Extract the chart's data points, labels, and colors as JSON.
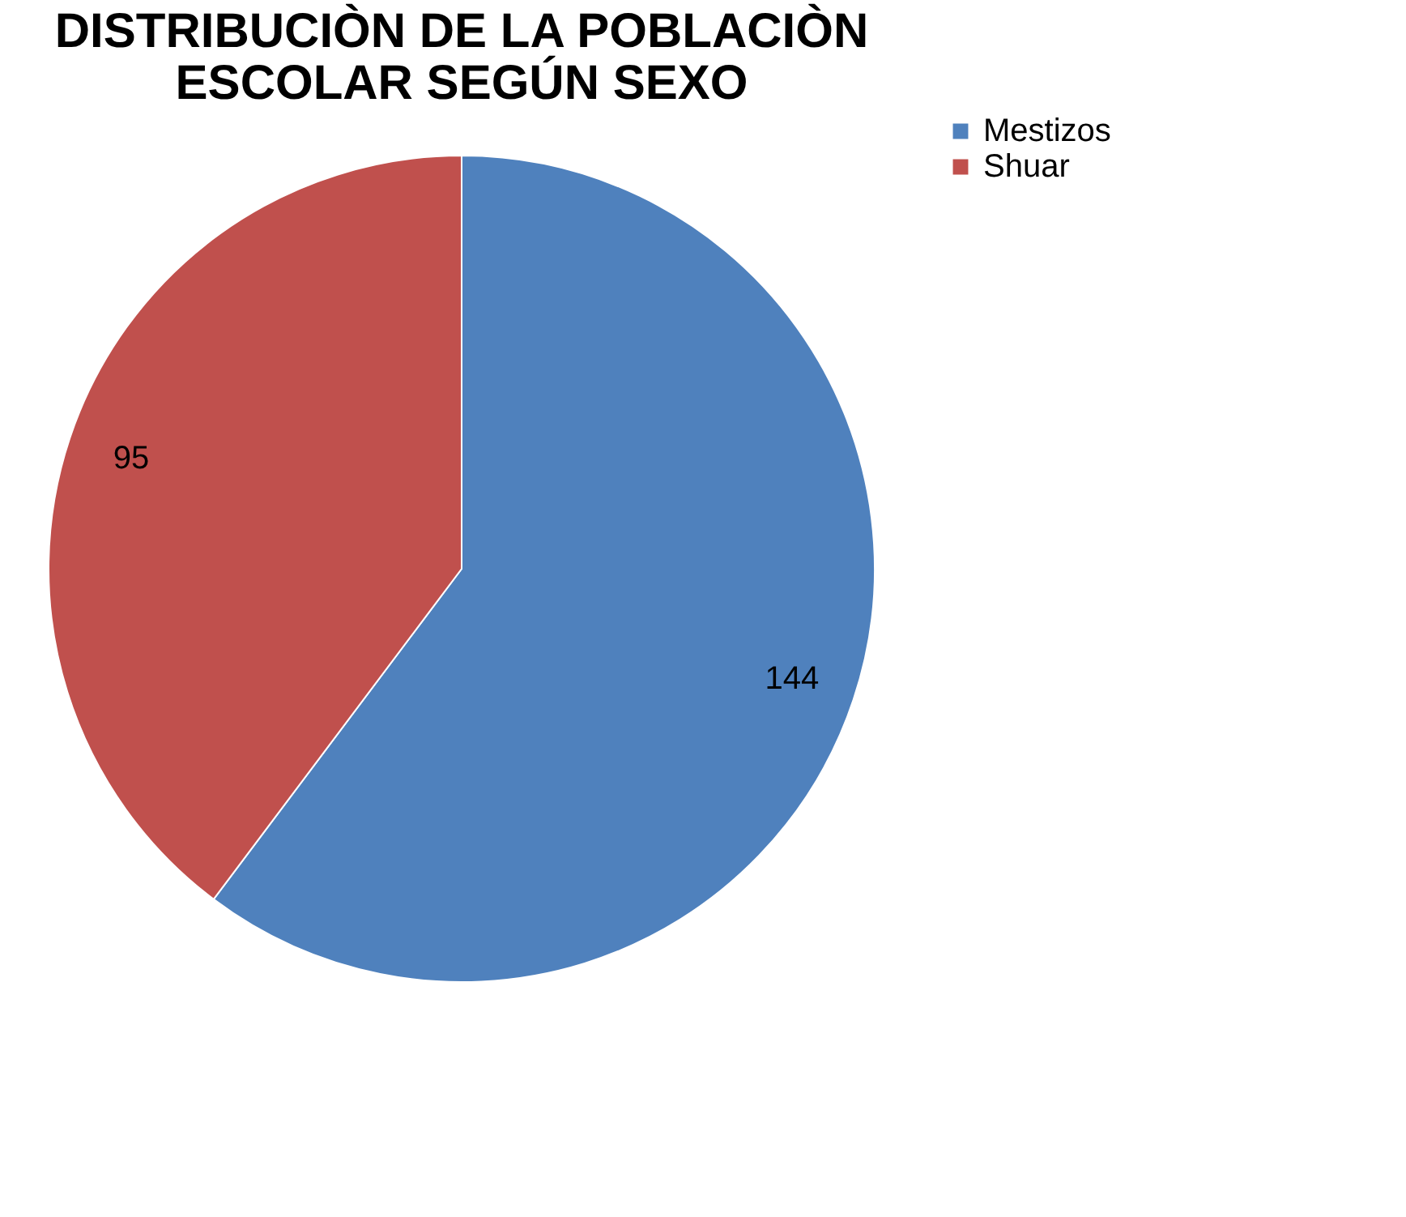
{
  "chart_data": {
    "type": "pie",
    "title": "DISTRIBUCIÒN DE LA POBLACIÒN ESCOLAR SEGÚN SEXO",
    "categories": [
      "Mestizos",
      "Shuar"
    ],
    "values": [
      144,
      95
    ],
    "colors": [
      "#4f81bd",
      "#c0504d"
    ],
    "data_labels": true,
    "legend": "right"
  }
}
